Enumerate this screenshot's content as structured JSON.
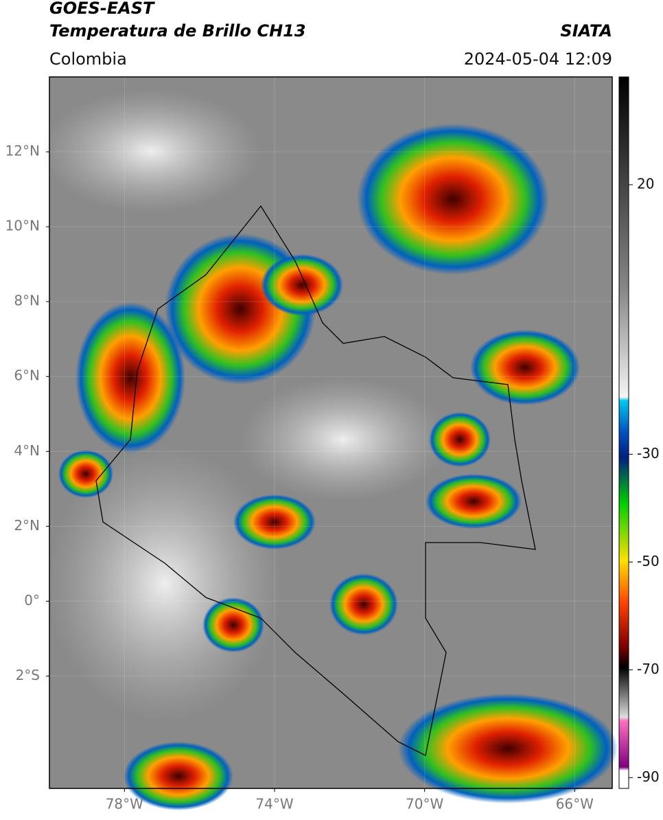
{
  "header": {
    "satellite": "GOES-EAST",
    "product": "Temperatura de Brillo CH13",
    "region": "Colombia",
    "source": "SIATA",
    "datetime": "2024-05-04 12:09"
  },
  "map": {
    "xlim": [
      -80,
      -65
    ],
    "ylim": [
      -5,
      14
    ],
    "xticks": [
      {
        "value": -78,
        "label": "78°W"
      },
      {
        "value": -74,
        "label": "74°W"
      },
      {
        "value": -70,
        "label": "70°W"
      },
      {
        "value": -66,
        "label": "66°W"
      }
    ],
    "yticks": [
      {
        "value": 12,
        "label": "12°N"
      },
      {
        "value": 10,
        "label": "10°N"
      },
      {
        "value": 8,
        "label": "8°N"
      },
      {
        "value": 6,
        "label": "6°N"
      },
      {
        "value": 4,
        "label": "4°N"
      },
      {
        "value": 2,
        "label": "2°N"
      },
      {
        "value": 0,
        "label": "0°"
      },
      {
        "value": -2,
        "label": "2°S"
      }
    ]
  },
  "colorbar": {
    "lim": [
      -92,
      40
    ],
    "ticks": [
      20,
      -30,
      -50,
      -70,
      -90
    ]
  }
}
